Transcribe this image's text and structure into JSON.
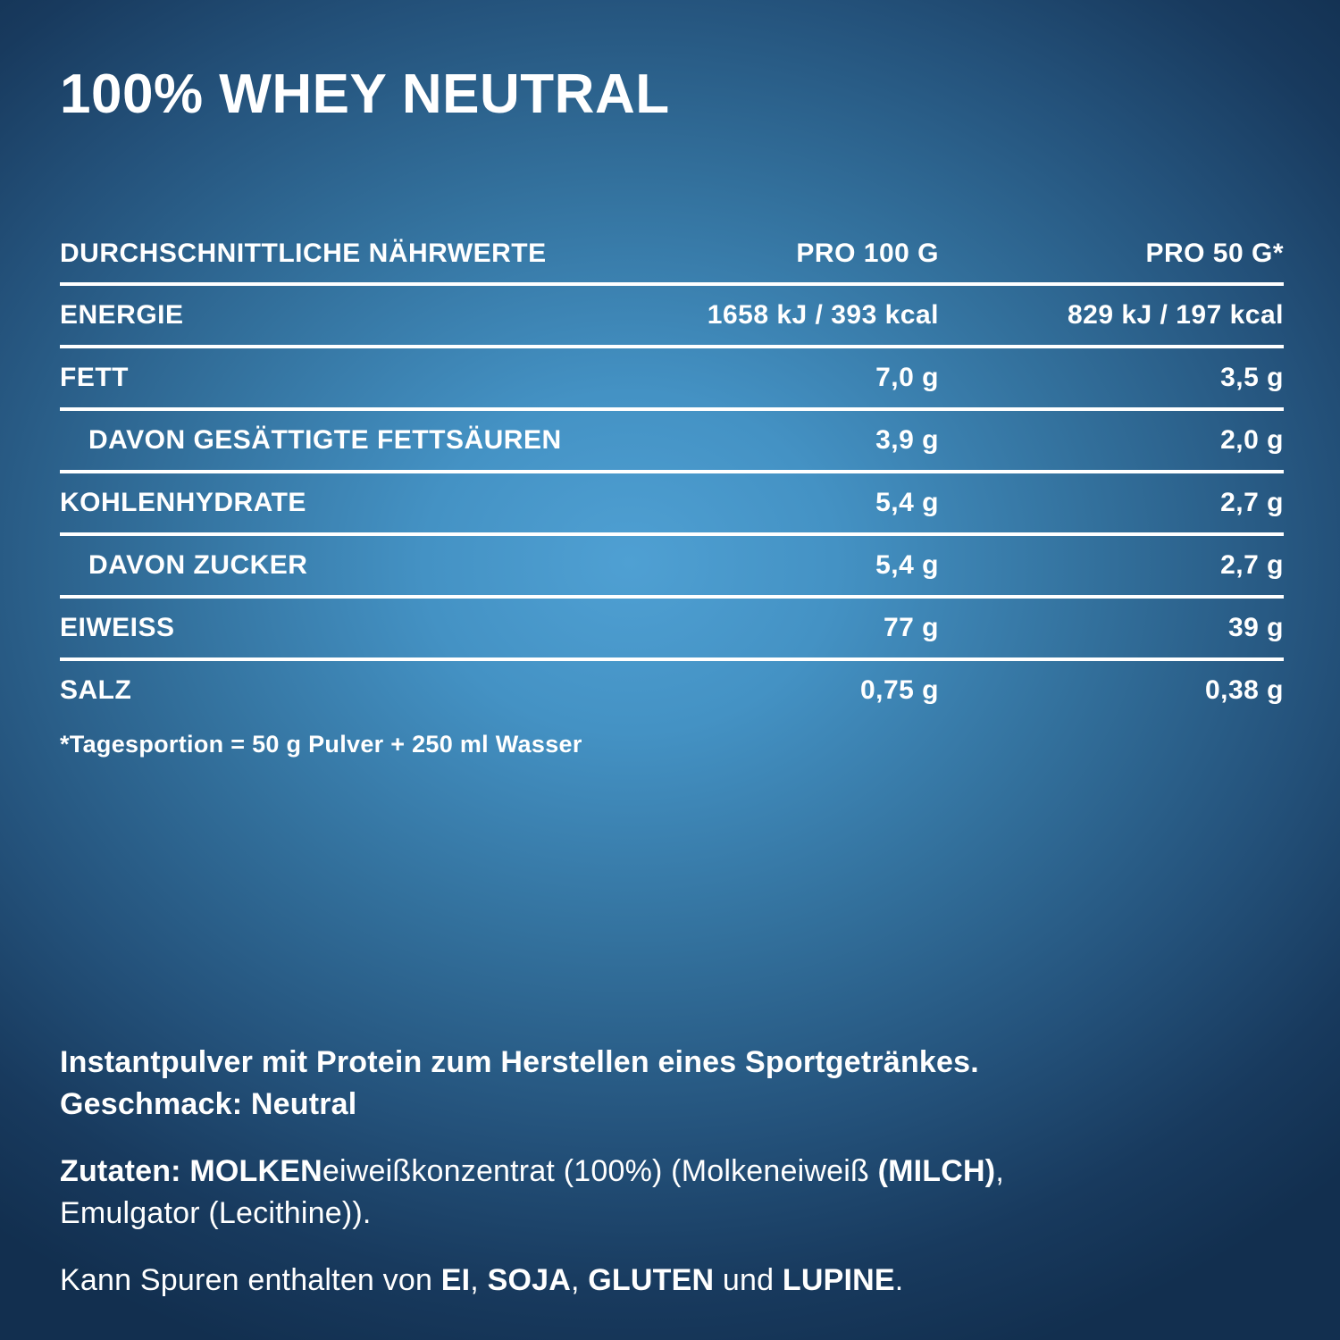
{
  "title": "100% WHEY NEUTRAL",
  "table": {
    "header": {
      "label": "DURCHSCHNITTLICHE NÄHRWERTE",
      "per100": "PRO 100 G",
      "per50": "PRO 50 G*"
    },
    "rows": [
      {
        "label": "ENERGIE",
        "per100": "1658 kJ / 393 kcal",
        "per50": "829 kJ / 197 kcal",
        "indent": false
      },
      {
        "label": "FETT",
        "per100": "7,0 g",
        "per50": "3,5 g",
        "indent": false
      },
      {
        "label": "DAVON GESÄTTIGTE FETTSÄUREN",
        "per100": "3,9 g",
        "per50": "2,0 g",
        "indent": true
      },
      {
        "label": "KOHLENHYDRATE",
        "per100": "5,4 g",
        "per50": "2,7 g",
        "indent": false
      },
      {
        "label": "DAVON ZUCKER",
        "per100": "5,4 g",
        "per50": "2,7 g",
        "indent": true
      },
      {
        "label": "EIWEISS",
        "per100": "77 g",
        "per50": "39 g",
        "indent": false
      },
      {
        "label": "SALZ",
        "per100": "0,75 g",
        "per50": "0,38 g",
        "indent": false
      }
    ],
    "footnote": "*Tagesportion = 50 g Pulver + 250 ml Wasser"
  },
  "description": {
    "paras": [
      {
        "segments": [
          {
            "text": "Instantpulver mit Protein zum Herstellen eines Sportgetränkes.",
            "bold": true
          },
          {
            "br": true
          },
          {
            "text": "Geschmack: Neutral",
            "bold": true
          }
        ]
      },
      {
        "segments": [
          {
            "text": "Zutaten: ",
            "bold": true
          },
          {
            "text": "MOLKEN",
            "bold": true
          },
          {
            "text": "eiweißkonzentrat (100%) (Molkeneiweiß ",
            "bold": false
          },
          {
            "text": "(MILCH)",
            "bold": true
          },
          {
            "text": ",",
            "bold": false
          },
          {
            "br": true
          },
          {
            "text": "Emulgator (Lecithine)).",
            "bold": false
          }
        ]
      },
      {
        "segments": [
          {
            "text": "Kann Spuren enthalten von ",
            "bold": false
          },
          {
            "text": "EI",
            "bold": true
          },
          {
            "text": ", ",
            "bold": false
          },
          {
            "text": "SOJA",
            "bold": true
          },
          {
            "text": ", ",
            "bold": false
          },
          {
            "text": "GLUTEN",
            "bold": true
          },
          {
            "text": " und ",
            "bold": false
          },
          {
            "text": "LUPINE",
            "bold": true
          },
          {
            "text": ".",
            "bold": false
          }
        ]
      }
    ]
  },
  "colors": {
    "background_center": "#4fa0d3",
    "background_edge": "#122f4f",
    "text": "#ffffff",
    "rule": "#ffffff"
  }
}
